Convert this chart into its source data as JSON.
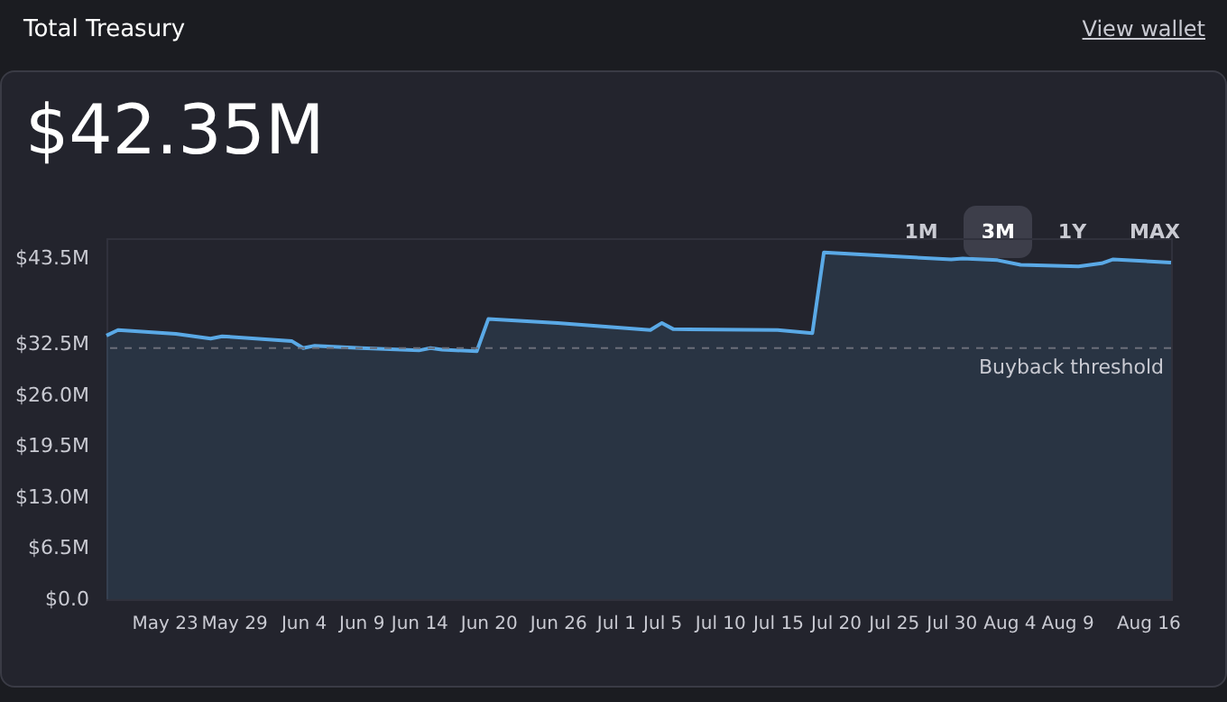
{
  "chart_data": {
    "type": "area",
    "title": "Total Treasury",
    "subtitle": "$42.35M",
    "annotations": [
      "View wallet",
      "1M",
      "3M",
      "1Y",
      "MAX"
    ],
    "x": [
      "--05-18",
      "--05-19",
      "--05-24",
      "--05-27",
      "--05-28",
      "--06-03",
      "--06-04",
      "--06-05",
      "--06-09",
      "--06-14",
      "--06-15",
      "--06-16",
      "--06-19",
      "--06-20",
      "--06-26",
      "--07-04",
      "--07-05",
      "--07-06",
      "--07-15",
      "--07-18",
      "--07-19",
      "--07-25",
      "--07-30",
      "--07-31",
      "--08-03",
      "--08-05",
      "--08-10",
      "--08-12",
      "--08-13",
      "--08-18"
    ],
    "series": [
      {
        "color": "#5aa9e6",
        "values": [
          33.6,
          34.3,
          33.8,
          33.2,
          33.5,
          32.9,
          32.0,
          32.3,
          32.0,
          31.7,
          32.0,
          31.8,
          31.6,
          35.7,
          35.2,
          34.3,
          35.2,
          34.4,
          34.3,
          33.9,
          44.2,
          43.7,
          43.3,
          43.4,
          43.2,
          42.6,
          42.4,
          42.8,
          43.3,
          42.9
        ]
      }
    ],
    "xlim": [
      "--05-18",
      "--08-18"
    ],
    "xticks": [
      {
        "value": "--05-23",
        "label": "May 23"
      },
      {
        "value": "--05-29",
        "label": "May 29"
      },
      {
        "value": "--06-04",
        "label": "Jun 4"
      },
      {
        "value": "--06-09",
        "label": "Jun 9"
      },
      {
        "value": "--06-14",
        "label": "Jun 14"
      },
      {
        "value": "--06-20",
        "label": "Jun 20"
      },
      {
        "value": "--06-26",
        "label": "Jun 26"
      },
      {
        "value": "--07-01",
        "label": "Jul 1"
      },
      {
        "value": "--07-05",
        "label": "Jul 5"
      },
      {
        "value": "--07-10",
        "label": "Jul 10"
      },
      {
        "value": "--07-15",
        "label": "Jul 15"
      },
      {
        "value": "--07-20",
        "label": "Jul 20"
      },
      {
        "value": "--07-25",
        "label": "Jul 25"
      },
      {
        "value": "--07-30",
        "label": "Jul 30"
      },
      {
        "value": "--08-04",
        "label": "Aug 4"
      },
      {
        "value": "--08-09",
        "label": "Aug 9"
      },
      {
        "value": "--08-16",
        "label": "Aug 16"
      }
    ],
    "ylim": [
      0,
      46
    ],
    "yticks": [
      {
        "value": 0,
        "label": "$0.0"
      },
      {
        "value": 6.5,
        "label": "$6.5M"
      },
      {
        "value": 13,
        "label": "$13.0M"
      },
      {
        "value": 19.5,
        "label": "$19.5M"
      },
      {
        "value": 26,
        "label": "$26.0M"
      },
      {
        "value": 32.5,
        "label": "$32.5M"
      },
      {
        "value": 43.5,
        "label": "$43.5M"
      }
    ],
    "ref_lines": [
      {
        "axis": "y",
        "value": 32,
        "label": "Buyback threshold",
        "color": "#6b6e7a",
        "line_style": "dashed"
      }
    ],
    "grid": false
  }
}
